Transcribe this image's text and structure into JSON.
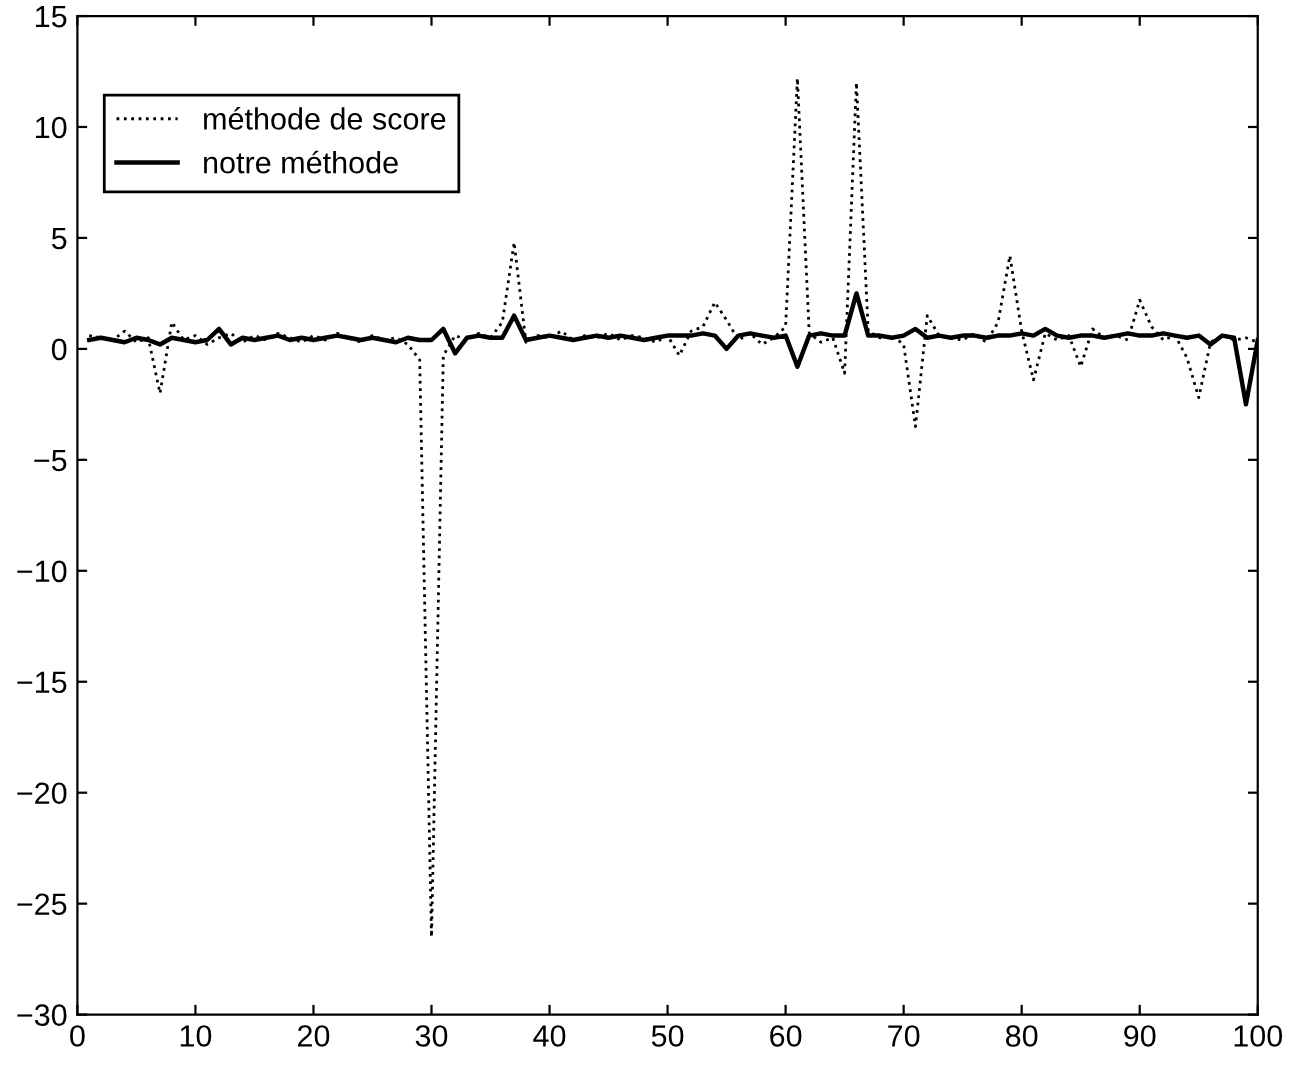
{
  "chart_data": {
    "type": "line",
    "x": [
      1,
      2,
      3,
      4,
      5,
      6,
      7,
      8,
      9,
      10,
      11,
      12,
      13,
      14,
      15,
      16,
      17,
      18,
      19,
      20,
      21,
      22,
      23,
      24,
      25,
      26,
      27,
      28,
      29,
      30,
      31,
      32,
      33,
      34,
      35,
      36,
      37,
      38,
      39,
      40,
      41,
      42,
      43,
      44,
      45,
      46,
      47,
      48,
      49,
      50,
      51,
      52,
      53,
      54,
      55,
      56,
      57,
      58,
      59,
      60,
      61,
      62,
      63,
      64,
      65,
      66,
      67,
      68,
      69,
      70,
      71,
      72,
      73,
      74,
      75,
      76,
      77,
      78,
      79,
      80,
      81,
      82,
      83,
      84,
      85,
      86,
      87,
      88,
      89,
      90,
      91,
      92,
      93,
      94,
      95,
      96,
      97,
      98,
      99,
      100
    ],
    "series": [
      {
        "name": "méthode de score",
        "color": "#000000",
        "line_style": "dotted",
        "values": [
          0.6,
          0.5,
          0.4,
          0.8,
          0.3,
          0.5,
          -2.0,
          1.2,
          0.4,
          0.6,
          0.2,
          0.5,
          0.7,
          0.3,
          0.6,
          0.4,
          0.7,
          0.5,
          0.3,
          0.6,
          0.4,
          0.7,
          0.5,
          0.3,
          0.6,
          0.4,
          0.5,
          0.2,
          -0.5,
          -26.5,
          -0.3,
          0.6,
          0.4,
          0.7,
          0.5,
          1.2,
          4.8,
          0.3,
          0.6,
          0.5,
          0.8,
          0.4,
          0.6,
          0.5,
          0.7,
          0.4,
          0.6,
          0.5,
          0.3,
          0.6,
          -0.3,
          0.8,
          1.0,
          2.1,
          1.3,
          0.4,
          0.7,
          0.2,
          0.5,
          1.0,
          12.2,
          0.7,
          0.3,
          0.5,
          -1.1,
          12.0,
          0.8,
          0.5,
          0.6,
          0.2,
          -3.5,
          1.5,
          0.6,
          0.5,
          0.4,
          0.7,
          0.3,
          1.2,
          4.2,
          0.8,
          -1.4,
          0.7,
          0.4,
          0.6,
          -0.8,
          0.9,
          0.5,
          0.6,
          0.4,
          2.2,
          1.0,
          0.4,
          0.6,
          -0.4,
          -2.2,
          0.3,
          0.6,
          0.4,
          0.5,
          0.3
        ]
      },
      {
        "name": "notre méthode",
        "color": "#000000",
        "line_style": "solid",
        "values": [
          0.4,
          0.5,
          0.4,
          0.3,
          0.5,
          0.4,
          0.2,
          0.5,
          0.4,
          0.3,
          0.4,
          0.9,
          0.2,
          0.5,
          0.4,
          0.5,
          0.6,
          0.4,
          0.5,
          0.4,
          0.5,
          0.6,
          0.5,
          0.4,
          0.5,
          0.4,
          0.3,
          0.5,
          0.4,
          0.4,
          0.9,
          -0.2,
          0.5,
          0.6,
          0.5,
          0.5,
          1.5,
          0.4,
          0.5,
          0.6,
          0.5,
          0.4,
          0.5,
          0.6,
          0.5,
          0.6,
          0.5,
          0.4,
          0.5,
          0.6,
          0.6,
          0.6,
          0.7,
          0.6,
          0.0,
          0.6,
          0.7,
          0.6,
          0.5,
          0.6,
          -0.8,
          0.6,
          0.7,
          0.6,
          0.6,
          2.5,
          0.6,
          0.6,
          0.5,
          0.6,
          0.9,
          0.5,
          0.6,
          0.5,
          0.6,
          0.6,
          0.5,
          0.6,
          0.6,
          0.7,
          0.6,
          0.9,
          0.6,
          0.5,
          0.6,
          0.6,
          0.5,
          0.6,
          0.7,
          0.6,
          0.6,
          0.7,
          0.6,
          0.5,
          0.6,
          0.2,
          0.6,
          0.5,
          -2.5,
          0.4
        ]
      }
    ],
    "xlim": [
      0,
      100
    ],
    "ylim": [
      -30,
      15
    ],
    "xticks": [
      0,
      10,
      20,
      30,
      40,
      50,
      60,
      70,
      80,
      90,
      100
    ],
    "yticks": [
      -30,
      -25,
      -20,
      -15,
      -10,
      -5,
      0,
      5,
      10,
      15
    ],
    "grid": false,
    "legend": "top left",
    "marker": "none"
  }
}
